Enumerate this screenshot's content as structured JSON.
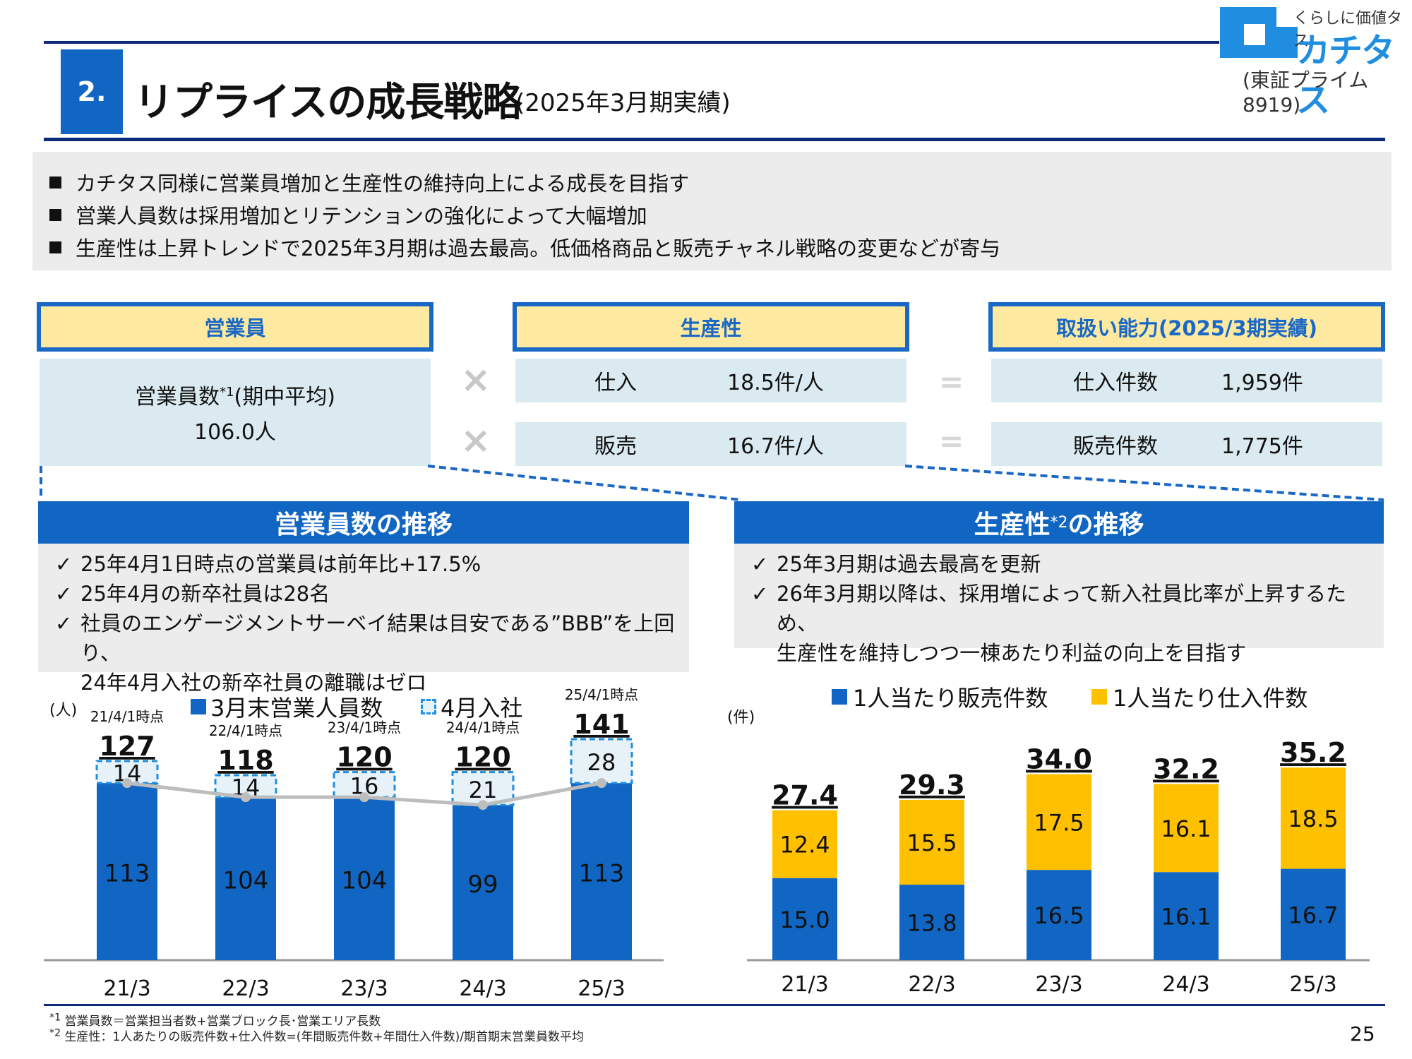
{
  "header": {
    "section_number": "2.",
    "title": "リプライスの成長戦略",
    "subtitle": "(2025年3月期実績)"
  },
  "logo": {
    "tagline": "くらしに価値タス",
    "name": "カチタス",
    "listing": "(東証プライム8919)"
  },
  "summary": {
    "bullets": [
      "カチタス同様に営業員増加と生産性の維持向上による成長を目指す",
      "営業人員数は採用増加とリテンションの強化によって大幅増加",
      "生産性は上昇トレンドで2025年3月期は過去最高。低価格商品と販売チャネル戦略の変更などが寄与"
    ]
  },
  "formula": {
    "staff_header": "営業員",
    "productivity_header": "生産性",
    "capacity_header": "取扱い能力(2025/3期実績)",
    "staff_label": "営業員数",
    "staff_note": "*1",
    "staff_label_suffix": "(期中平均)",
    "staff_value": "106.0人",
    "times": "×",
    "equals": "=",
    "purchase_label": "仕入",
    "purchase_value": "18.5件/人",
    "sales_label": "販売",
    "sales_value": "16.7件/人",
    "purchase_count_label": "仕入件数",
    "purchase_count_value": "1,959件",
    "sales_count_label": "販売件数",
    "sales_count_value": "1,775件"
  },
  "left_section": {
    "title": "営業員数の推移",
    "check": "✓",
    "bullets": [
      "25年4月1日時点の営業員は前年比+17.5%",
      "25年4月の新卒社員は28名",
      "社員のエンゲージメントサーベイ結果は目安である”BBB”を上回り、",
      "24年4月入社の新卒社員の離職はゼロ"
    ]
  },
  "right_section": {
    "title": "生産性",
    "title_note": "*2",
    "title_suffix": "の推移",
    "check": "✓",
    "bullets": [
      "25年3月期は過去最高を更新",
      "26年3月期以降は、採用増によって新入社員比率が上昇するため、",
      "生産性を維持しつつ一棟あたり利益の向上を目指す"
    ]
  },
  "chart_data": [
    {
      "type": "bar",
      "stacked": true,
      "unit_label": "(人)",
      "categories": [
        "21/3",
        "22/3",
        "23/3",
        "24/3",
        "25/3"
      ],
      "series": [
        {
          "name": "3月末営業人員数",
          "values": [
            113,
            104,
            104,
            99,
            113
          ],
          "color": "#1066c2"
        },
        {
          "name": "4月入社",
          "values": [
            14,
            14,
            16,
            21,
            28
          ],
          "color": "#e6f2f8"
        }
      ],
      "totals": [
        127,
        118,
        120,
        120,
        141
      ],
      "point_labels": [
        "21/4/1時点",
        "22/4/1時点",
        "23/4/1時点",
        "24/4/1時点",
        "25/4/1時点"
      ],
      "ylim": [
        0,
        160
      ],
      "legend": "top"
    },
    {
      "type": "bar",
      "stacked": true,
      "unit_label": "(件)",
      "categories": [
        "21/3",
        "22/3",
        "23/3",
        "24/3",
        "25/3"
      ],
      "series": [
        {
          "name": "1人当たり販売件数",
          "values": [
            15.0,
            13.8,
            16.5,
            16.1,
            16.7
          ],
          "color": "#1066c2"
        },
        {
          "name": "1人当たり仕入件数",
          "values": [
            12.4,
            15.5,
            17.5,
            16.1,
            18.5
          ],
          "color": "#ffc000"
        }
      ],
      "totals": [
        27.4,
        29.3,
        34.0,
        32.2,
        35.2
      ],
      "ylim": [
        0,
        40
      ],
      "legend": "top"
    }
  ],
  "footnotes": {
    "note1_mark": "*1",
    "note1": "営業員数＝営業担当者数+営業ブロック長･営業エリア長数",
    "note2_mark": "*2",
    "note2": "生産性：1人あたりの販売件数+仕入件数=(年間販売件数+年間仕入件数)/期首期末営業員数平均"
  },
  "page_number": "25"
}
